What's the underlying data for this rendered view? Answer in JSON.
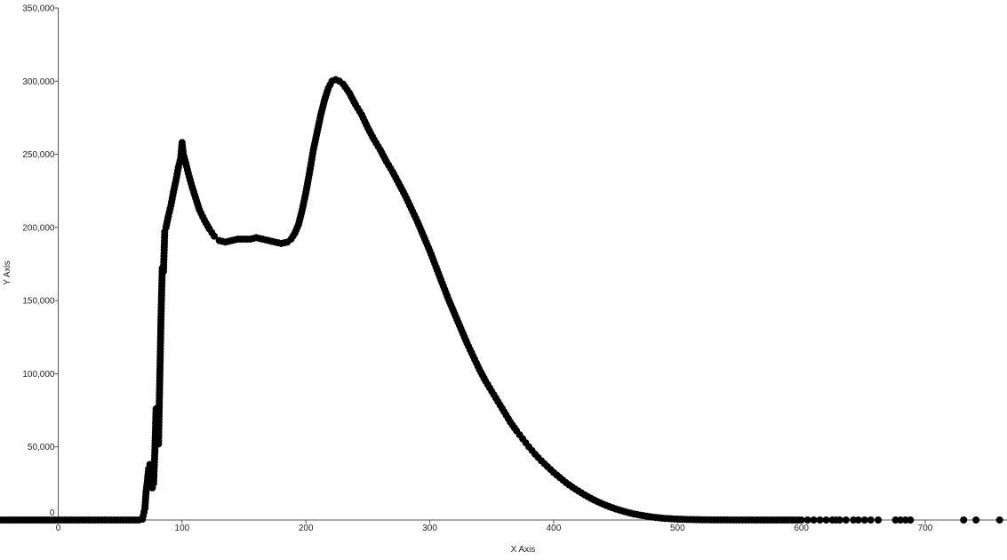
{
  "chart_data": {
    "type": "scatter",
    "title": "",
    "xlabel": "X Axis",
    "ylabel": "Y Axis",
    "xlim": [
      -47,
      766
    ],
    "ylim": [
      0,
      350000
    ],
    "x_ticks": [
      0,
      100,
      200,
      300,
      400,
      500,
      600,
      700
    ],
    "x_tick_labels": [
      "0",
      "100",
      "200",
      "300",
      "400",
      "500",
      "600",
      "700"
    ],
    "y_ticks": [
      0,
      50000,
      100000,
      150000,
      200000,
      250000,
      300000,
      350000
    ],
    "y_tick_labels": [
      "0",
      "50,000",
      "100,000",
      "150,000",
      "200,000",
      "250,000",
      "300,000",
      "350,000"
    ],
    "grid": false,
    "legend": "none",
    "marker_color": "#000000",
    "series": [
      {
        "points": [
          [
            -47,
            0
          ],
          [
            -40,
            0
          ],
          [
            -33,
            0
          ],
          [
            -26,
            0
          ],
          [
            -19,
            0
          ],
          [
            -12,
            0
          ],
          [
            -5,
            0
          ],
          [
            0,
            0
          ],
          [
            5,
            0
          ],
          [
            10,
            0
          ],
          [
            15,
            0
          ],
          [
            20,
            0
          ],
          [
            25,
            0
          ],
          [
            30,
            0
          ],
          [
            35,
            0
          ],
          [
            40,
            0
          ],
          [
            45,
            0
          ],
          [
            50,
            0
          ],
          [
            55,
            0
          ],
          [
            60,
            0
          ],
          [
            65,
            0
          ],
          [
            68,
            500
          ],
          [
            70,
            8000
          ],
          [
            71,
            20000
          ],
          [
            72,
            27000
          ],
          [
            73,
            35000
          ],
          [
            74,
            38000
          ],
          [
            75,
            28000
          ],
          [
            76,
            22000
          ],
          [
            77,
            25000
          ],
          [
            78,
            46000
          ],
          [
            79,
            76000
          ],
          [
            80,
            62000
          ],
          [
            81,
            52000
          ],
          [
            81.5,
            75000
          ],
          [
            83,
            139000
          ],
          [
            84,
            172000
          ],
          [
            85,
            170000
          ],
          [
            86,
            197000
          ],
          [
            87,
            200000
          ],
          [
            89,
            208000
          ],
          [
            91,
            215000
          ],
          [
            93,
            224000
          ],
          [
            95,
            232000
          ],
          [
            97,
            241000
          ],
          [
            99,
            248000
          ],
          [
            100,
            258000
          ],
          [
            101,
            250000
          ],
          [
            103,
            244000
          ],
          [
            105,
            237000
          ],
          [
            108,
            228000
          ],
          [
            111,
            220000
          ],
          [
            114,
            212000
          ],
          [
            118,
            205000
          ],
          [
            122,
            199000
          ],
          [
            126,
            194000
          ],
          [
            130,
            191000
          ],
          [
            135,
            190000
          ],
          [
            140,
            191000
          ],
          [
            145,
            192000
          ],
          [
            150,
            192000
          ],
          [
            155,
            192000
          ],
          [
            160,
            193000
          ],
          [
            165,
            192000
          ],
          [
            170,
            191000
          ],
          [
            175,
            190000
          ],
          [
            180,
            189000
          ],
          [
            185,
            190000
          ],
          [
            188,
            192000
          ],
          [
            191,
            196000
          ],
          [
            194,
            202000
          ],
          [
            197,
            212000
          ],
          [
            200,
            224000
          ],
          [
            203,
            238000
          ],
          [
            206,
            253000
          ],
          [
            209,
            265000
          ],
          [
            212,
            277000
          ],
          [
            215,
            287000
          ],
          [
            218,
            295000
          ],
          [
            221,
            300000
          ],
          [
            224,
            301000
          ],
          [
            227,
            300000
          ],
          [
            230,
            298000
          ],
          [
            235,
            292000
          ],
          [
            240,
            284000
          ],
          [
            245,
            277000
          ],
          [
            250,
            268000
          ],
          [
            255,
            260000
          ],
          [
            260,
            253000
          ],
          [
            265,
            245000
          ],
          [
            270,
            238000
          ],
          [
            275,
            230000
          ],
          [
            280,
            222000
          ],
          [
            285,
            213000
          ],
          [
            290,
            204000
          ],
          [
            295,
            194000
          ],
          [
            300,
            184000
          ],
          [
            305,
            173000
          ],
          [
            310,
            162000
          ],
          [
            315,
            151000
          ],
          [
            320,
            141000
          ],
          [
            325,
            131000
          ],
          [
            330,
            121000
          ],
          [
            335,
            112000
          ],
          [
            340,
            103000
          ],
          [
            345,
            95000
          ],
          [
            350,
            88000
          ],
          [
            355,
            81000
          ],
          [
            360,
            74000
          ],
          [
            365,
            67000
          ],
          [
            370,
            61000
          ],
          [
            375,
            55500
          ],
          [
            380,
            50000
          ],
          [
            385,
            45000
          ],
          [
            390,
            40500
          ],
          [
            395,
            36500
          ],
          [
            400,
            32500
          ],
          [
            405,
            29000
          ],
          [
            410,
            25500
          ],
          [
            415,
            22500
          ],
          [
            420,
            19800
          ],
          [
            425,
            17200
          ],
          [
            430,
            14800
          ],
          [
            435,
            12700
          ],
          [
            440,
            10800
          ],
          [
            445,
            9100
          ],
          [
            450,
            7600
          ],
          [
            455,
            6300
          ],
          [
            460,
            5100
          ],
          [
            465,
            4100
          ],
          [
            470,
            3300
          ],
          [
            475,
            2600
          ],
          [
            480,
            2000
          ],
          [
            485,
            1500
          ],
          [
            490,
            1100
          ],
          [
            495,
            800
          ],
          [
            500,
            600
          ],
          [
            505,
            450
          ],
          [
            510,
            320
          ],
          [
            515,
            230
          ],
          [
            520,
            160
          ],
          [
            525,
            110
          ],
          [
            530,
            80
          ],
          [
            535,
            55
          ],
          [
            540,
            40
          ],
          [
            545,
            28
          ],
          [
            550,
            20
          ],
          [
            555,
            14
          ],
          [
            560,
            10
          ],
          [
            565,
            7
          ],
          [
            570,
            5
          ],
          [
            575,
            4
          ],
          [
            580,
            3
          ],
          [
            585,
            2
          ],
          [
            590,
            1
          ],
          [
            595,
            1
          ],
          [
            600,
            0
          ],
          [
            605,
            0
          ],
          [
            610,
            0
          ],
          [
            615,
            0
          ],
          [
            620,
            0
          ],
          [
            625,
            0
          ],
          [
            628,
            0
          ],
          [
            631,
            0
          ],
          [
            636,
            0
          ],
          [
            642,
            0
          ],
          [
            646,
            0
          ],
          [
            651,
            0
          ],
          [
            656,
            0
          ],
          [
            662,
            0
          ],
          [
            676,
            0
          ],
          [
            680,
            0
          ],
          [
            684,
            0
          ],
          [
            688,
            0
          ],
          [
            731,
            0
          ],
          [
            741,
            0
          ],
          [
            760,
            0
          ]
        ]
      }
    ]
  }
}
